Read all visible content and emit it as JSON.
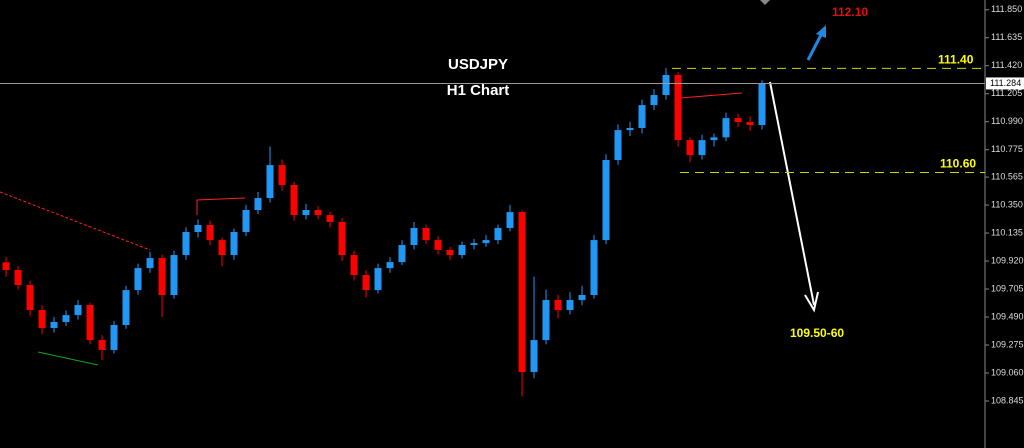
{
  "chart_data": {
    "type": "candlestick",
    "title": "USDJPY",
    "subtitle": "H1 Chart",
    "up_color": "#2196f3",
    "down_color": "#ff0000",
    "open": [
      109.91,
      109.851,
      109.736,
      109.544,
      109.406,
      109.452,
      109.505,
      109.582,
      109.313,
      109.237,
      109.429,
      109.697,
      109.866,
      109.943,
      109.659,
      109.966,
      110.143,
      110.197,
      110.081,
      109.966,
      110.143,
      110.312,
      110.404,
      110.657,
      110.504,
      110.273,
      110.312,
      110.273,
      110.22,
      109.966,
      109.813,
      109.697,
      109.866,
      109.912,
      110.043,
      110.174,
      110.081,
      110.005,
      109.966,
      110.043,
      110.058,
      110.081,
      110.174,
      110.296,
      109.068,
      109.313,
      109.621,
      109.544,
      109.621,
      109.659,
      110.081,
      110.696,
      110.926,
      110.942,
      111.118,
      111.195,
      111.349,
      110.849,
      110.734,
      110.849,
      110.87,
      111.018,
      110.988,
      110.965
    ],
    "high": [
      109.95,
      109.88,
      109.77,
      109.58,
      109.49,
      109.54,
      109.62,
      109.6,
      109.35,
      109.46,
      109.73,
      109.9,
      109.99,
      109.97,
      110.0,
      110.18,
      110.24,
      110.23,
      110.1,
      110.17,
      110.35,
      110.45,
      110.8,
      110.7,
      110.53,
      110.36,
      110.34,
      110.3,
      110.25,
      110.0,
      109.85,
      109.9,
      109.95,
      110.08,
      110.22,
      110.2,
      110.11,
      110.03,
      110.07,
      110.09,
      110.12,
      110.2,
      110.35,
      110.31,
      109.8,
      109.7,
      109.66,
      109.68,
      109.73,
      110.12,
      110.74,
      110.97,
      110.99,
      111.16,
      111.24,
      111.402,
      111.37,
      110.87,
      110.89,
      110.9,
      111.06,
      111.05,
      111.03,
      111.31
    ],
    "low": [
      109.8,
      109.7,
      109.5,
      109.36,
      109.37,
      109.42,
      109.47,
      109.28,
      109.16,
      109.21,
      109.4,
      109.66,
      109.83,
      109.49,
      109.63,
      109.93,
      110.1,
      110.04,
      109.88,
      109.93,
      110.11,
      110.28,
      110.37,
      110.46,
      110.23,
      110.24,
      110.24,
      110.18,
      109.92,
      109.77,
      109.64,
      109.67,
      109.83,
      109.89,
      110.01,
      110.05,
      109.97,
      109.93,
      109.94,
      110.01,
      110.03,
      110.05,
      110.15,
      108.88,
      109.02,
      109.28,
      109.48,
      109.51,
      109.58,
      109.63,
      110.05,
      110.66,
      110.88,
      110.9,
      111.08,
      111.16,
      110.8,
      110.68,
      110.7,
      110.8,
      110.84,
      110.95,
      110.92,
      110.93
    ],
    "close": [
      109.851,
      109.736,
      109.544,
      109.406,
      109.452,
      109.505,
      109.582,
      109.313,
      109.237,
      109.429,
      109.697,
      109.866,
      109.943,
      109.659,
      109.966,
      110.143,
      110.197,
      110.081,
      109.966,
      110.143,
      110.312,
      110.404,
      110.657,
      110.504,
      110.273,
      110.312,
      110.273,
      110.22,
      109.966,
      109.813,
      109.697,
      109.866,
      109.912,
      110.043,
      110.174,
      110.081,
      110.005,
      109.966,
      110.043,
      110.058,
      110.081,
      110.174,
      110.296,
      109.068,
      109.313,
      109.621,
      109.544,
      109.621,
      109.659,
      110.081,
      110.696,
      110.926,
      110.942,
      111.118,
      111.195,
      111.349,
      110.849,
      110.734,
      110.849,
      110.87,
      111.018,
      110.988,
      110.965,
      111.284
    ],
    "ylim": [
      108.484,
      111.925
    ],
    "yticks": [
      {
        "value": 111.85,
        "label": "111.850"
      },
      111.635,
      {
        "value": 111.42,
        "label": "111.420"
      },
      111.205,
      {
        "value": 110.99,
        "label": "110.990"
      },
      110.775,
      110.565,
      {
        "value": 110.35,
        "label": "110.350"
      },
      110.135,
      {
        "value": 109.92,
        "label": "109.920"
      },
      109.705,
      {
        "value": 109.49,
        "label": "109.490"
      },
      109.275,
      {
        "value": 109.06,
        "label": "109.060"
      },
      108.845
    ],
    "current_price": 111.284,
    "levels": [
      {
        "value": 111.4,
        "label": "111.40"
      },
      {
        "value": 110.6,
        "label": "110.60"
      }
    ],
    "target_label": "112.10",
    "projection_label": "109.50-60"
  }
}
